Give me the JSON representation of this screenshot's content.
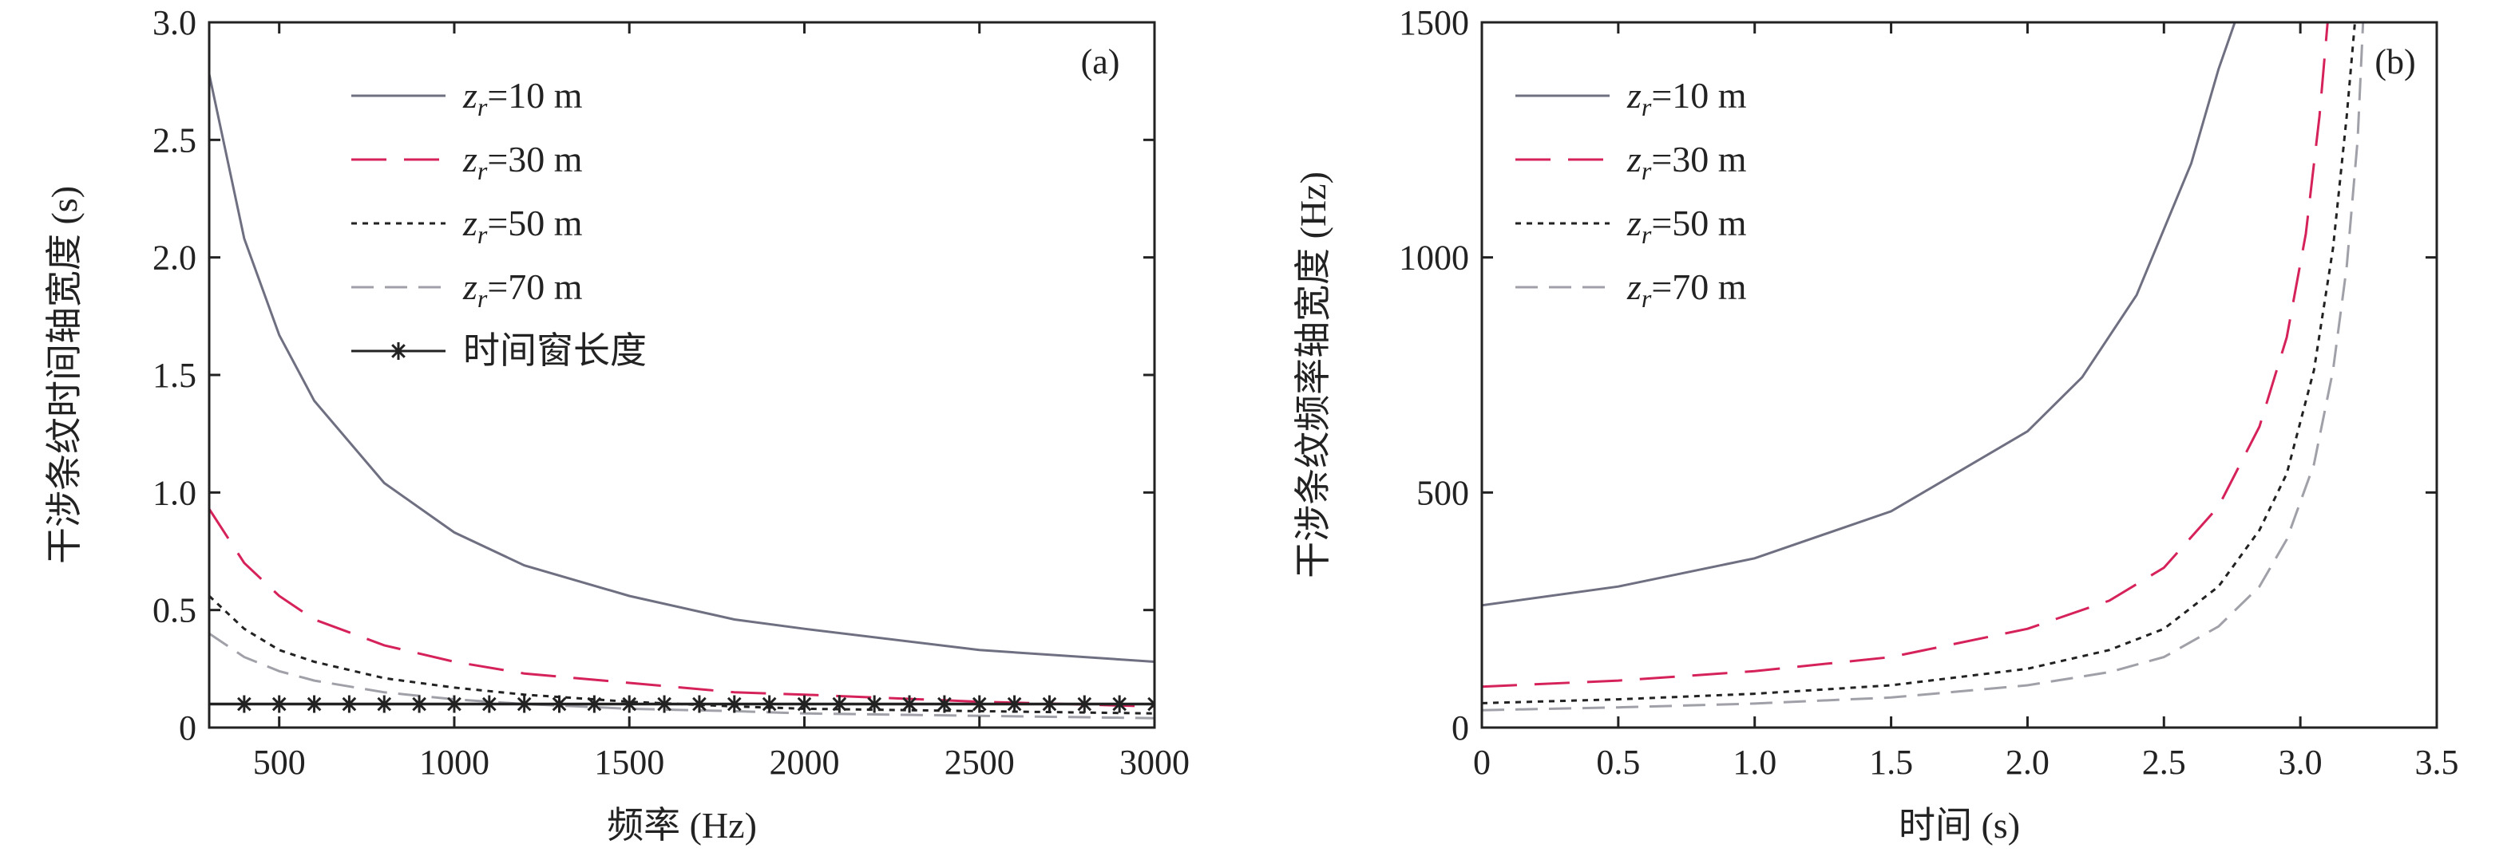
{
  "chart_data": [
    {
      "panel_label": "(a)",
      "type": "line",
      "xlabel": "频率 (Hz)",
      "ylabel": "干涉条纹时间轴宽度 (s)",
      "xlim": [
        300,
        3000
      ],
      "ylim": [
        0,
        3.0
      ],
      "xticks": [
        500,
        1000,
        1500,
        2000,
        2500,
        3000
      ],
      "yticks": [
        0,
        0.5,
        1.0,
        1.5,
        2.0,
        2.5,
        3.0
      ],
      "ytick_labels": [
        "0",
        "0.5",
        "1.0",
        "1.5",
        "2.0",
        "2.5",
        "3.0"
      ],
      "legend_position": "top-left",
      "series": [
        {
          "name_prefix": "z",
          "name_sub": "r",
          "name_suffix": "=10 m",
          "style": "solid",
          "color": "#6f6f82",
          "x": [
            300,
            400,
            500,
            600,
            800,
            1000,
            1200,
            1500,
            1800,
            2000,
            2500,
            3000
          ],
          "y": [
            2.78,
            2.08,
            1.67,
            1.39,
            1.04,
            0.83,
            0.69,
            0.56,
            0.46,
            0.42,
            0.33,
            0.28
          ]
        },
        {
          "name_prefix": "z",
          "name_sub": "r",
          "name_suffix": "=30 m",
          "style": "dashed",
          "color": "#d6225a",
          "x": [
            300,
            400,
            500,
            600,
            800,
            1000,
            1200,
            1500,
            1800,
            2000,
            2500,
            3000
          ],
          "y": [
            0.93,
            0.7,
            0.56,
            0.46,
            0.35,
            0.28,
            0.23,
            0.19,
            0.15,
            0.14,
            0.11,
            0.09
          ]
        },
        {
          "name_prefix": "z",
          "name_sub": "r",
          "name_suffix": "=50 m",
          "style": "dotted",
          "color": "#222222",
          "x": [
            300,
            400,
            500,
            600,
            800,
            1000,
            1200,
            1500,
            1800,
            2000,
            2500,
            3000
          ],
          "y": [
            0.56,
            0.42,
            0.33,
            0.28,
            0.21,
            0.17,
            0.14,
            0.11,
            0.09,
            0.08,
            0.07,
            0.06
          ]
        },
        {
          "name_prefix": "z",
          "name_sub": "r",
          "name_suffix": "=70 m",
          "style": "longdash",
          "color": "#a0a0a8",
          "x": [
            300,
            400,
            500,
            600,
            800,
            1000,
            1200,
            1500,
            1800,
            2000,
            2500,
            3000
          ],
          "y": [
            0.4,
            0.3,
            0.24,
            0.2,
            0.15,
            0.12,
            0.1,
            0.08,
            0.07,
            0.06,
            0.05,
            0.04
          ]
        },
        {
          "name": "时间窗长度",
          "style": "star-line",
          "color": "#222222",
          "x": [
            300,
            400,
            500,
            600,
            700,
            800,
            900,
            1000,
            1100,
            1200,
            1300,
            1400,
            1500,
            1600,
            1700,
            1800,
            1900,
            2000,
            2100,
            2200,
            2300,
            2400,
            2500,
            2600,
            2700,
            2800,
            2900,
            3000
          ],
          "y": [
            0.1,
            0.1,
            0.1,
            0.1,
            0.1,
            0.1,
            0.1,
            0.1,
            0.1,
            0.1,
            0.1,
            0.1,
            0.1,
            0.1,
            0.1,
            0.1,
            0.1,
            0.1,
            0.1,
            0.1,
            0.1,
            0.1,
            0.1,
            0.1,
            0.1,
            0.1,
            0.1,
            0.1
          ]
        }
      ]
    },
    {
      "panel_label": "(b)",
      "type": "line",
      "xlabel": "时间 (s)",
      "ylabel": "干涉条纹频率轴宽度 (Hz)",
      "xlim": [
        0,
        3.5
      ],
      "ylim": [
        0,
        1500
      ],
      "xticks": [
        0,
        0.5,
        1.0,
        1.5,
        2.0,
        2.5,
        3.0,
        3.5
      ],
      "xtick_labels": [
        "0",
        "0.5",
        "1.0",
        "1.5",
        "2.0",
        "2.5",
        "3.0",
        "3.5"
      ],
      "yticks": [
        0,
        500,
        1000,
        1500
      ],
      "legend_position": "top-left",
      "series": [
        {
          "name_prefix": "z",
          "name_sub": "r",
          "name_suffix": "=10 m",
          "style": "solid",
          "color": "#6f6f82",
          "x": [
            0,
            0.5,
            1.0,
            1.5,
            2.0,
            2.2,
            2.4,
            2.6,
            2.7,
            2.76
          ],
          "y": [
            260,
            300,
            360,
            460,
            630,
            745,
            920,
            1200,
            1400,
            1500
          ]
        },
        {
          "name_prefix": "z",
          "name_sub": "r",
          "name_suffix": "=30 m",
          "style": "dashed",
          "color": "#d6225a",
          "x": [
            0,
            0.5,
            1.0,
            1.5,
            2.0,
            2.3,
            2.5,
            2.7,
            2.85,
            2.95,
            3.02,
            3.07,
            3.1
          ],
          "y": [
            87,
            100,
            120,
            150,
            210,
            270,
            340,
            470,
            640,
            830,
            1050,
            1300,
            1500
          ]
        },
        {
          "name_prefix": "z",
          "name_sub": "r",
          "name_suffix": "=50 m",
          "style": "dotted",
          "color": "#222222",
          "x": [
            0,
            0.5,
            1.0,
            1.5,
            2.0,
            2.3,
            2.5,
            2.7,
            2.85,
            2.95,
            3.05,
            3.12,
            3.17,
            3.2
          ],
          "y": [
            52,
            60,
            72,
            90,
            125,
            165,
            210,
            300,
            420,
            540,
            760,
            1020,
            1300,
            1500
          ]
        },
        {
          "name_prefix": "z",
          "name_sub": "r",
          "name_suffix": "=70 m",
          "style": "longdash",
          "color": "#a0a0a8",
          "x": [
            0,
            0.5,
            1.0,
            1.5,
            2.0,
            2.3,
            2.5,
            2.7,
            2.85,
            2.95,
            3.05,
            3.12,
            3.17,
            3.21,
            3.23
          ],
          "y": [
            37,
            43,
            51,
            64,
            90,
            118,
            150,
            215,
            300,
            400,
            560,
            760,
            980,
            1250,
            1500
          ]
        }
      ]
    }
  ]
}
